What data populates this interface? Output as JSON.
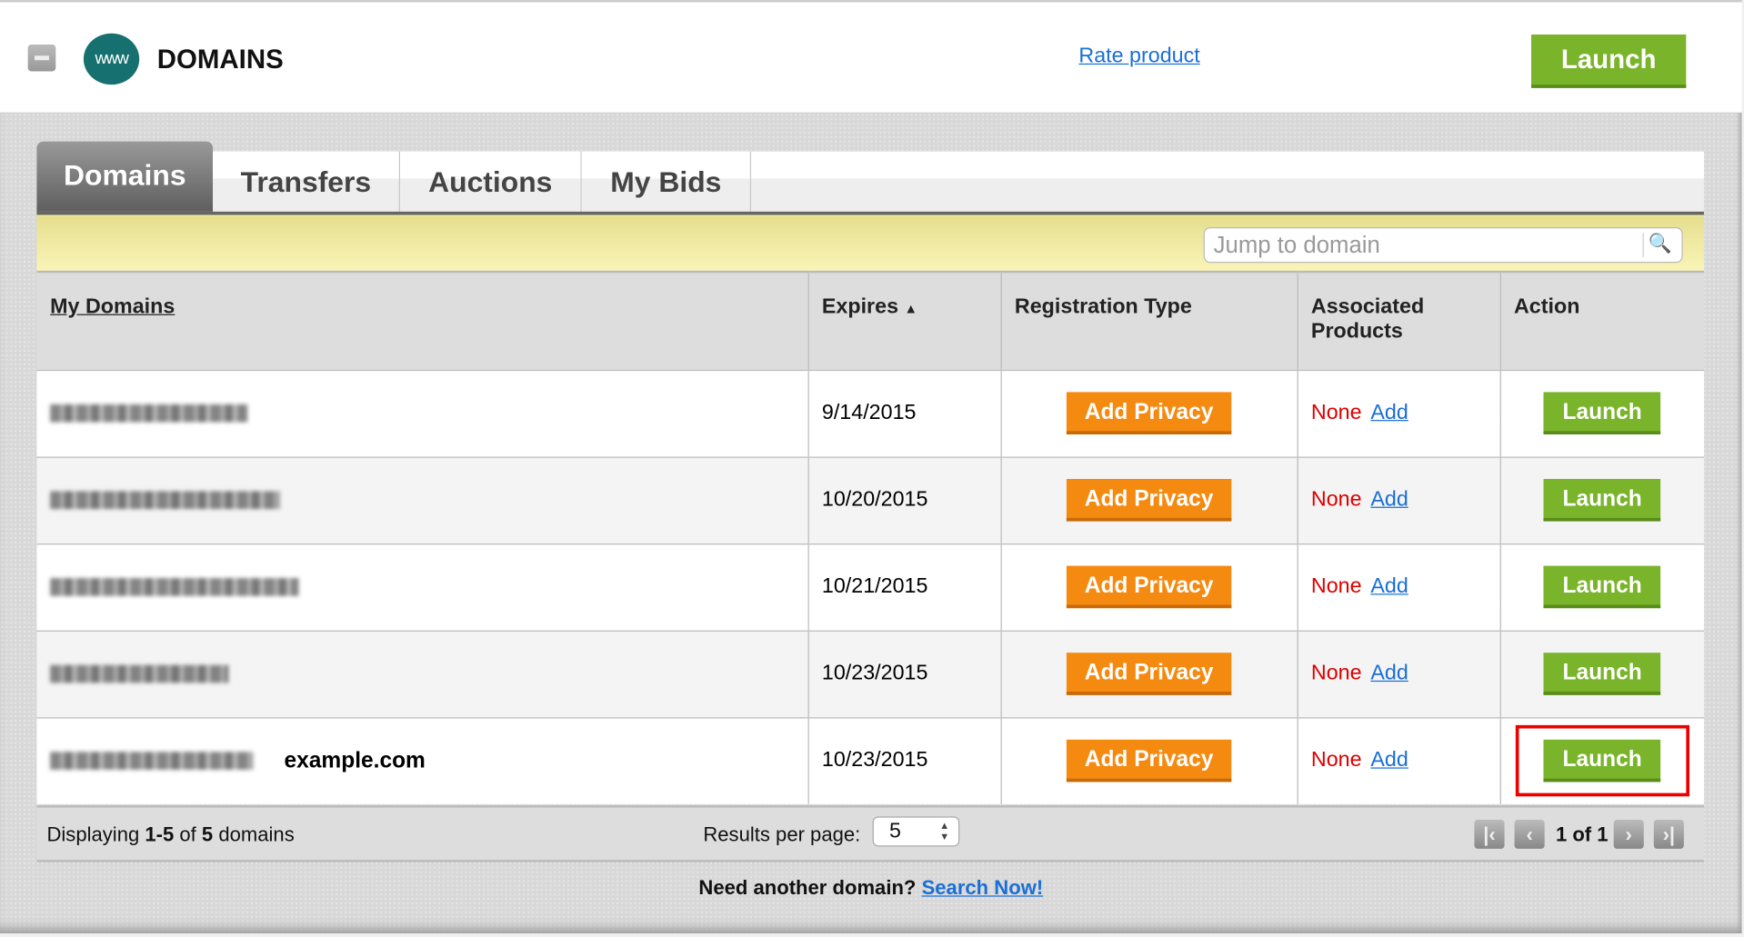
{
  "header": {
    "title": "DOMAINS",
    "logo_text": "www",
    "rate_link": "Rate product",
    "launch_label": "Launch"
  },
  "tabs": [
    {
      "label": "Domains",
      "active": true
    },
    {
      "label": "Transfers"
    },
    {
      "label": "Auctions"
    },
    {
      "label": "My Bids"
    }
  ],
  "search": {
    "placeholder": "Jump to domain",
    "icon": "magnifier-icon"
  },
  "table": {
    "columns": [
      "My Domains",
      "Expires",
      "Registration Type",
      "Associated Products",
      "Action"
    ],
    "sort_indicator": "▲",
    "rows": [
      {
        "domain_extra": "",
        "expires": "9/14/2015",
        "reg_button": "Add Privacy",
        "products": "None",
        "add_link": "Add",
        "action": "Launch"
      },
      {
        "domain_extra": "",
        "expires": "10/20/2015",
        "reg_button": "Add Privacy",
        "products": "None",
        "add_link": "Add",
        "action": "Launch"
      },
      {
        "domain_extra": "",
        "expires": "10/21/2015",
        "reg_button": "Add Privacy",
        "products": "None",
        "add_link": "Add",
        "action": "Launch"
      },
      {
        "domain_extra": "",
        "expires": "10/23/2015",
        "reg_button": "Add Privacy",
        "products": "None",
        "add_link": "Add",
        "action": "Launch"
      },
      {
        "domain_extra": "example.com",
        "expires": "10/23/2015",
        "reg_button": "Add Privacy",
        "products": "None",
        "add_link": "Add",
        "action": "Launch"
      }
    ]
  },
  "footer": {
    "displaying_prefix": "Displaying ",
    "range": "1-5",
    "of": " of ",
    "total": "5",
    "suffix": " domains",
    "results_label": "Results per page:",
    "results_value": "5",
    "page_info": "1 of 1"
  },
  "bottom": {
    "question": "Need another domain?",
    "link": "Search Now!"
  },
  "colors": {
    "launch": "#79b42a",
    "privacy": "#f58a10",
    "none": "#dd0000",
    "link": "#1a6fd6",
    "highlight": "#ee0000"
  }
}
